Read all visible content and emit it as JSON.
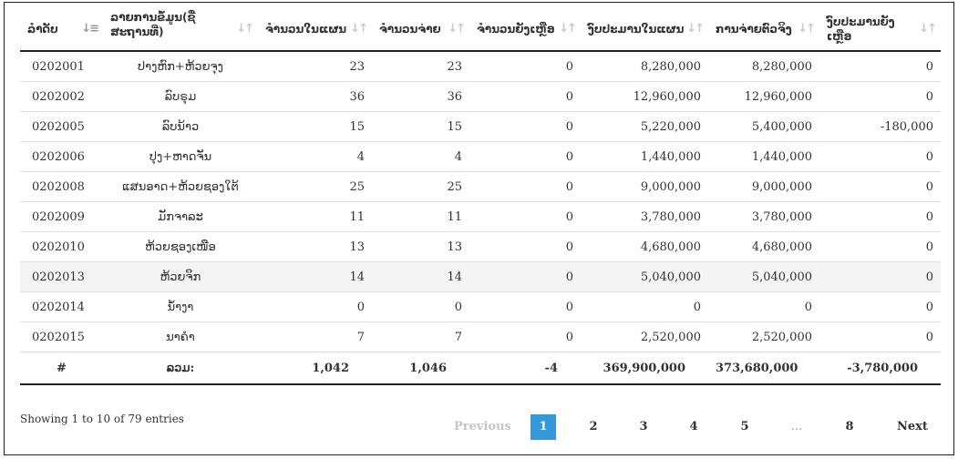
{
  "columns": [
    {
      "label": "ລຳດັບ",
      "sort": "asc-active"
    },
    {
      "label": "ລາຍການຂໍ້ມູນ(ຊື່ສະຖານທີ່)",
      "sort": "both"
    },
    {
      "label": "ຈຳນວນໃນແຜນ",
      "sort": "both"
    },
    {
      "label": "ຈຳນວນຈ່າຍ",
      "sort": "both"
    },
    {
      "label": "ຈຳນວນຍັງເຫຼືອ",
      "sort": "both"
    },
    {
      "label": "ງົບປະມານໃນແຜນ",
      "sort": "both"
    },
    {
      "label": "ການຈ່າຍຕົວຈິງ",
      "sort": "both"
    },
    {
      "label": "ງົບປະມານຍັງເຫຼືອ",
      "sort": "both"
    }
  ],
  "rows": [
    [
      "0202001",
      "ປາງຫົກ+ຫ້ວຍຈຸງ",
      "23",
      "23",
      "0",
      "8,280,000",
      "8,280,000",
      "0"
    ],
    [
      "0202002",
      "ລົບຣຸມ",
      "36",
      "36",
      "0",
      "12,960,000",
      "12,960,000",
      "0"
    ],
    [
      "0202005",
      "ລົບນ້າວ",
      "15",
      "15",
      "0",
      "5,220,000",
      "5,400,000",
      "-180,000"
    ],
    [
      "0202006",
      "ປຸງ+ຫາດຈັນ",
      "4",
      "4",
      "0",
      "1,440,000",
      "1,440,000",
      "0"
    ],
    [
      "0202008",
      "ແສນອາດ+ຫ້ວຍຊອງໃຕ້",
      "25",
      "25",
      "0",
      "9,000,000",
      "9,000,000",
      "0"
    ],
    [
      "0202009",
      "ມັກຈາລະ",
      "11",
      "11",
      "0",
      "3,780,000",
      "3,780,000",
      "0"
    ],
    [
      "0202010",
      "ຫ້ວຍຊອງເໜືອ",
      "13",
      "13",
      "0",
      "4,680,000",
      "4,680,000",
      "0"
    ],
    [
      "0202013",
      "ຫ້ວຍຈິກ",
      "14",
      "14",
      "0",
      "5,040,000",
      "5,040,000",
      "0"
    ],
    [
      "0202014",
      "ນ້ຳງາ",
      "0",
      "0",
      "0",
      "0",
      "0",
      "0"
    ],
    [
      "0202015",
      "ນາຄຳ",
      "7",
      "7",
      "0",
      "2,520,000",
      "2,520,000",
      "0"
    ]
  ],
  "footer": [
    "#",
    "ລວມ:",
    "1,042",
    "1,046",
    "-4",
    "369,900,000",
    "373,680,000",
    "-3,780,000"
  ],
  "info": "Showing 1 to 10 of 79 entries",
  "pagination": {
    "previous": "Previous",
    "pages": [
      "1",
      "2",
      "3",
      "4",
      "5",
      "…",
      "8"
    ],
    "current": "1",
    "next": "Next"
  }
}
